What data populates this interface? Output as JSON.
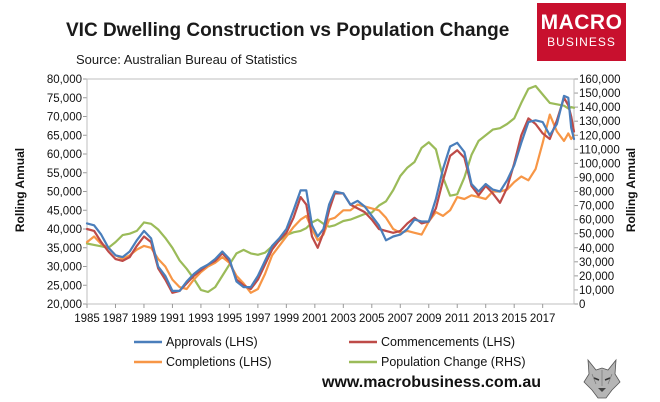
{
  "header": {
    "title": "VIC Dwelling Construction vs Population Change",
    "subtitle": "Source: Australian Bureau of Statistics"
  },
  "logo": {
    "line1": "MACRO",
    "line2": "BUSINESS"
  },
  "footer": {
    "url": "www.macrobusiness.com.au"
  },
  "colors": {
    "approvals": "#4a7ebb",
    "commencements": "#be4b48",
    "completions": "#f79646",
    "population": "#9bbb59"
  },
  "chart_data": {
    "type": "line",
    "x_range": [
      1985,
      2019.2
    ],
    "x_ticks": [
      "1985",
      "1987",
      "1989",
      "1991",
      "1993",
      "1995",
      "1997",
      "1999",
      "2001",
      "2003",
      "2005",
      "2007",
      "2009",
      "2011",
      "2013",
      "2015",
      "2017"
    ],
    "ylabel_left": "Rolling Annual",
    "ylabel_right": "Rolling Annual",
    "ylim_left": [
      20000,
      80000
    ],
    "ylim_right": [
      0,
      160000
    ],
    "y_ticks_left": [
      "20,000",
      "25,000",
      "30,000",
      "35,000",
      "40,000",
      "45,000",
      "50,000",
      "55,000",
      "60,000",
      "65,000",
      "70,000",
      "75,000",
      "80,000"
    ],
    "y_ticks_right": [
      "0",
      "10,000",
      "20,000",
      "30,000",
      "40,000",
      "50,000",
      "60,000",
      "70,000",
      "80,000",
      "90,000",
      "100,000",
      "110,000",
      "120,000",
      "130,000",
      "140,000",
      "150,000",
      "160,000"
    ],
    "grid": false,
    "legend_position": "bottom",
    "series": [
      {
        "name": "Approvals (LHS)",
        "axis": "left",
        "points": [
          [
            1985,
            41500
          ],
          [
            1985.5,
            41000
          ],
          [
            1986,
            38500
          ],
          [
            1986.5,
            35000
          ],
          [
            1987,
            33000
          ],
          [
            1987.5,
            32500
          ],
          [
            1988,
            34000
          ],
          [
            1988.5,
            37000
          ],
          [
            1989,
            39500
          ],
          [
            1989.5,
            37500
          ],
          [
            1990,
            30000
          ],
          [
            1990.5,
            27500
          ],
          [
            1991,
            23500
          ],
          [
            1991.5,
            23500
          ],
          [
            1992,
            26000
          ],
          [
            1992.5,
            28000
          ],
          [
            1993,
            29500
          ],
          [
            1993.5,
            30500
          ],
          [
            1994,
            32000
          ],
          [
            1994.5,
            34000
          ],
          [
            1995,
            32000
          ],
          [
            1995.5,
            26000
          ],
          [
            1996,
            24500
          ],
          [
            1996.5,
            24500
          ],
          [
            1997,
            27500
          ],
          [
            1997.5,
            31500
          ],
          [
            1998,
            35500
          ],
          [
            1998.5,
            37500
          ],
          [
            1999,
            40000
          ],
          [
            1999.5,
            45000
          ],
          [
            2000,
            50300
          ],
          [
            2000.4,
            50300
          ],
          [
            2000.8,
            41000
          ],
          [
            2001.2,
            38000
          ],
          [
            2001.6,
            40000
          ],
          [
            2002,
            46500
          ],
          [
            2002.4,
            50000
          ],
          [
            2003,
            49500
          ],
          [
            2003.5,
            46500
          ],
          [
            2004,
            47500
          ],
          [
            2004.5,
            46000
          ],
          [
            2005,
            43500
          ],
          [
            2005.5,
            41000
          ],
          [
            2006,
            37000
          ],
          [
            2006.5,
            38000
          ],
          [
            2007,
            38500
          ],
          [
            2007.5,
            40000
          ],
          [
            2008,
            42500
          ],
          [
            2008.5,
            42000
          ],
          [
            2009,
            42000
          ],
          [
            2009.5,
            48000
          ],
          [
            2010,
            56000
          ],
          [
            2010.5,
            62000
          ],
          [
            2011,
            63000
          ],
          [
            2011.5,
            60500
          ],
          [
            2012,
            52000
          ],
          [
            2012.5,
            50000
          ],
          [
            2013,
            52000
          ],
          [
            2013.5,
            50500
          ],
          [
            2014,
            50000
          ],
          [
            2014.5,
            53000
          ],
          [
            2015,
            57000
          ],
          [
            2015.5,
            63000
          ],
          [
            2016,
            68500
          ],
          [
            2016.5,
            69000
          ],
          [
            2017,
            68500
          ],
          [
            2017.5,
            65000
          ],
          [
            2018,
            68000
          ],
          [
            2018.5,
            75500
          ],
          [
            2018.8,
            75000
          ],
          [
            2019,
            67000
          ],
          [
            2019.2,
            64000
          ]
        ]
      },
      {
        "name": "Commencements (LHS)",
        "axis": "left",
        "points": [
          [
            1985,
            40000
          ],
          [
            1985.5,
            39500
          ],
          [
            1986,
            36500
          ],
          [
            1986.5,
            34000
          ],
          [
            1987,
            32000
          ],
          [
            1987.5,
            31500
          ],
          [
            1988,
            32500
          ],
          [
            1988.5,
            35500
          ],
          [
            1989,
            38000
          ],
          [
            1989.5,
            36500
          ],
          [
            1990,
            29500
          ],
          [
            1990.5,
            26500
          ],
          [
            1991,
            23000
          ],
          [
            1991.5,
            23500
          ],
          [
            1992,
            25500
          ],
          [
            1992.5,
            27500
          ],
          [
            1993,
            29000
          ],
          [
            1993.5,
            30500
          ],
          [
            1994,
            31500
          ],
          [
            1994.5,
            33500
          ],
          [
            1995,
            31500
          ],
          [
            1995.5,
            26500
          ],
          [
            1996,
            25000
          ],
          [
            1996.5,
            24000
          ],
          [
            1997,
            26500
          ],
          [
            1997.5,
            30500
          ],
          [
            1998,
            34500
          ],
          [
            1998.5,
            37000
          ],
          [
            1999,
            39000
          ],
          [
            1999.5,
            43000
          ],
          [
            2000,
            48500
          ],
          [
            2000.4,
            46500
          ],
          [
            2000.8,
            38000
          ],
          [
            2001.2,
            35000
          ],
          [
            2001.6,
            39000
          ],
          [
            2002,
            45000
          ],
          [
            2002.4,
            49500
          ],
          [
            2003,
            49500
          ],
          [
            2003.5,
            46500
          ],
          [
            2004,
            45500
          ],
          [
            2004.5,
            44500
          ],
          [
            2005,
            42500
          ],
          [
            2005.5,
            40000
          ],
          [
            2006,
            39500
          ],
          [
            2006.5,
            39000
          ],
          [
            2007,
            39500
          ],
          [
            2007.5,
            41500
          ],
          [
            2008,
            43000
          ],
          [
            2008.5,
            41500
          ],
          [
            2009,
            42000
          ],
          [
            2009.5,
            45500
          ],
          [
            2010,
            53000
          ],
          [
            2010.5,
            59500
          ],
          [
            2011,
            61000
          ],
          [
            2011.5,
            59000
          ],
          [
            2012,
            51500
          ],
          [
            2012.5,
            49000
          ],
          [
            2013,
            51500
          ],
          [
            2013.5,
            49500
          ],
          [
            2014,
            47000
          ],
          [
            2014.5,
            51000
          ],
          [
            2015,
            57500
          ],
          [
            2015.5,
            65000
          ],
          [
            2016,
            69500
          ],
          [
            2016.5,
            68000
          ],
          [
            2017,
            65500
          ],
          [
            2017.5,
            64000
          ],
          [
            2018,
            69000
          ],
          [
            2018.5,
            75000
          ],
          [
            2018.8,
            73000
          ],
          [
            2019,
            70000
          ],
          [
            2019.2,
            66000
          ]
        ]
      },
      {
        "name": "Completions (LHS)",
        "axis": "left",
        "points": [
          [
            1985,
            36500
          ],
          [
            1985.5,
            38000
          ],
          [
            1986,
            36000
          ],
          [
            1986.5,
            35000
          ],
          [
            1987,
            33000
          ],
          [
            1987.5,
            32000
          ],
          [
            1988,
            33000
          ],
          [
            1988.5,
            34500
          ],
          [
            1989,
            35500
          ],
          [
            1989.5,
            35000
          ],
          [
            1990,
            32000
          ],
          [
            1990.5,
            30000
          ],
          [
            1991,
            26500
          ],
          [
            1991.5,
            24500
          ],
          [
            1992,
            24000
          ],
          [
            1992.5,
            26500
          ],
          [
            1993,
            28500
          ],
          [
            1993.5,
            30000
          ],
          [
            1994,
            31000
          ],
          [
            1994.5,
            32500
          ],
          [
            1995,
            31000
          ],
          [
            1995.5,
            27500
          ],
          [
            1996,
            25500
          ],
          [
            1996.5,
            23000
          ],
          [
            1997,
            24000
          ],
          [
            1997.5,
            28000
          ],
          [
            1998,
            33000
          ],
          [
            1998.5,
            35500
          ],
          [
            1999,
            38000
          ],
          [
            1999.5,
            40500
          ],
          [
            2000,
            42500
          ],
          [
            2000.4,
            43500
          ],
          [
            2000.8,
            40000
          ],
          [
            2001.2,
            37000
          ],
          [
            2001.6,
            38500
          ],
          [
            2002,
            42500
          ],
          [
            2002.4,
            43000
          ],
          [
            2003,
            45000
          ],
          [
            2003.5,
            45000
          ],
          [
            2004,
            46500
          ],
          [
            2004.5,
            46000
          ],
          [
            2005,
            45500
          ],
          [
            2005.5,
            45000
          ],
          [
            2006,
            43000
          ],
          [
            2006.5,
            40000
          ],
          [
            2007,
            39000
          ],
          [
            2007.5,
            39500
          ],
          [
            2008,
            39000
          ],
          [
            2008.5,
            38500
          ],
          [
            2009,
            42000
          ],
          [
            2009.5,
            44500
          ],
          [
            2010,
            43500
          ],
          [
            2010.5,
            45000
          ],
          [
            2011,
            48500
          ],
          [
            2011.5,
            48000
          ],
          [
            2012,
            49000
          ],
          [
            2012.5,
            48500
          ],
          [
            2013,
            48000
          ],
          [
            2013.5,
            50000
          ],
          [
            2014,
            50000
          ],
          [
            2014.5,
            50500
          ],
          [
            2015,
            52500
          ],
          [
            2015.5,
            54000
          ],
          [
            2016,
            53000
          ],
          [
            2016.5,
            56000
          ],
          [
            2017,
            63000
          ],
          [
            2017.5,
            70500
          ],
          [
            2018,
            66000
          ],
          [
            2018.5,
            63500
          ],
          [
            2018.8,
            65500
          ],
          [
            2019,
            64000
          ],
          [
            2019.2,
            65000
          ]
        ]
      },
      {
        "name": "Population Change (RHS)",
        "axis": "right",
        "points": [
          [
            1985,
            43000
          ],
          [
            1985.5,
            42000
          ],
          [
            1986,
            41000
          ],
          [
            1986.5,
            40000
          ],
          [
            1987,
            44000
          ],
          [
            1987.5,
            49000
          ],
          [
            1988,
            50000
          ],
          [
            1988.5,
            52000
          ],
          [
            1989,
            58000
          ],
          [
            1989.5,
            57000
          ],
          [
            1990,
            53000
          ],
          [
            1990.5,
            47000
          ],
          [
            1991,
            40000
          ],
          [
            1991.5,
            31000
          ],
          [
            1992,
            25000
          ],
          [
            1992.5,
            18000
          ],
          [
            1993,
            10000
          ],
          [
            1993.5,
            8500
          ],
          [
            1994,
            12000
          ],
          [
            1994.5,
            20000
          ],
          [
            1995,
            28000
          ],
          [
            1995.5,
            36000
          ],
          [
            1996,
            38500
          ],
          [
            1996.5,
            36000
          ],
          [
            1997,
            35000
          ],
          [
            1997.5,
            36500
          ],
          [
            1998,
            41000
          ],
          [
            1998.5,
            45000
          ],
          [
            1999,
            49000
          ],
          [
            1999.5,
            51000
          ],
          [
            2000,
            52000
          ],
          [
            2000.4,
            54000
          ],
          [
            2000.8,
            58000
          ],
          [
            2001.2,
            60000
          ],
          [
            2001.6,
            57000
          ],
          [
            2002,
            55000
          ],
          [
            2002.4,
            56000
          ],
          [
            2003,
            59000
          ],
          [
            2003.5,
            60000
          ],
          [
            2004,
            62000
          ],
          [
            2004.5,
            64000
          ],
          [
            2005,
            65000
          ],
          [
            2005.5,
            70000
          ],
          [
            2006,
            73000
          ],
          [
            2006.5,
            81000
          ],
          [
            2007,
            91000
          ],
          [
            2007.5,
            97000
          ],
          [
            2008,
            101000
          ],
          [
            2008.5,
            111000
          ],
          [
            2009,
            115000
          ],
          [
            2009.5,
            110000
          ],
          [
            2010,
            90000
          ],
          [
            2010.5,
            77000
          ],
          [
            2011,
            78000
          ],
          [
            2011.5,
            90000
          ],
          [
            2012,
            106000
          ],
          [
            2012.5,
            116000
          ],
          [
            2013,
            120000
          ],
          [
            2013.5,
            124000
          ],
          [
            2014,
            125000
          ],
          [
            2014.5,
            128000
          ],
          [
            2015,
            132000
          ],
          [
            2015.5,
            143000
          ],
          [
            2016,
            153000
          ],
          [
            2016.5,
            155000
          ],
          [
            2017,
            149000
          ],
          [
            2017.5,
            143000
          ],
          [
            2018,
            142000
          ],
          [
            2018.5,
            141000
          ],
          [
            2018.8,
            139000
          ],
          [
            2019,
            140000
          ],
          [
            2019.2,
            139500
          ]
        ]
      }
    ]
  }
}
